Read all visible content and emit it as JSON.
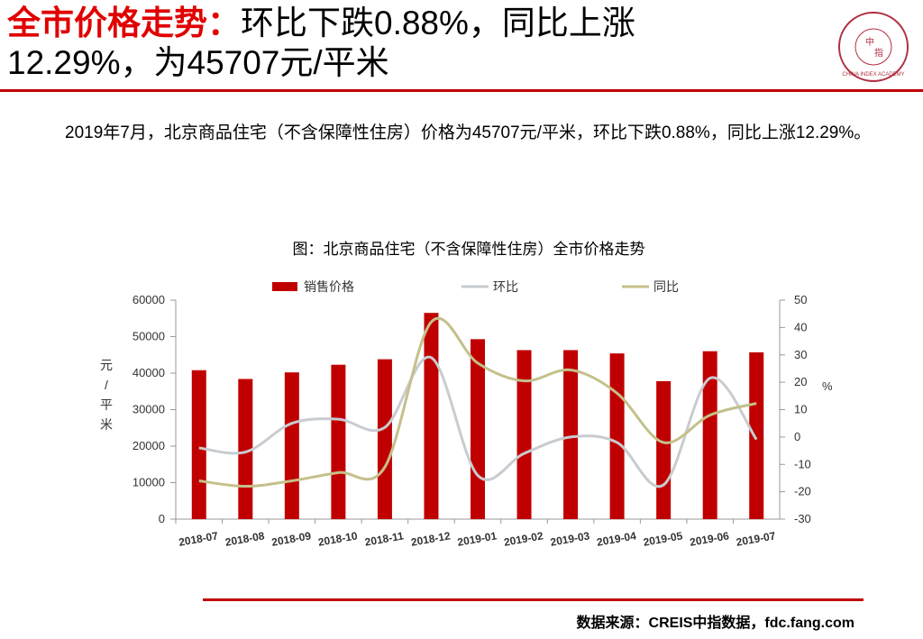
{
  "header": {
    "label": "全市价格走势：",
    "lines": [
      "环比下跌0.88%，同比上涨",
      "12.29%，为45707元/平米"
    ]
  },
  "logo": {
    "ring": "CHINA INDEX ACADEMY",
    "center": [
      "中",
      "指"
    ]
  },
  "paragraph": "2019年7月，北京商品住宅（不含保障性住房）价格为45707元/平米，环比下跌0.88%，同比上涨12.29%。",
  "chart_data": {
    "type": "bar",
    "title": "图：北京商品住宅（不含保障性住房）全市价格走势",
    "categories": [
      "2018-07",
      "2018-08",
      "2018-09",
      "2018-10",
      "2018-11",
      "2018-12",
      "2019-01",
      "2019-02",
      "2019-03",
      "2019-04",
      "2019-05",
      "2019-06",
      "2019-07"
    ],
    "series": [
      {
        "name": "销售价格",
        "type": "bar",
        "color": "#c00000",
        "values": [
          40800,
          38400,
          40200,
          42300,
          43800,
          56500,
          49300,
          46300,
          46300,
          45400,
          37800,
          46000,
          45707
        ]
      },
      {
        "name": "环比",
        "type": "line",
        "axis": "y2",
        "color": "#c8ccd0",
        "values": [
          -4,
          -5.5,
          5,
          6.5,
          3.5,
          29,
          -14,
          -6,
          0,
          -2,
          -17.5,
          21.5,
          -0.88
        ]
      },
      {
        "name": "同比",
        "type": "line",
        "axis": "y2",
        "color": "#c4c08a",
        "values": [
          -16,
          -18,
          -16,
          -13,
          -11,
          42,
          27,
          20.5,
          24.5,
          16,
          -2,
          8,
          12.29
        ]
      }
    ],
    "ylabel": "元/平米",
    "y2label": "%",
    "ylim": [
      0,
      60000
    ],
    "yticks": [
      0,
      10000,
      20000,
      30000,
      40000,
      50000,
      60000
    ],
    "y2lim": [
      -30,
      50
    ],
    "y2ticks": [
      -30,
      -20,
      -10,
      0,
      10,
      20,
      30,
      40,
      50
    ]
  },
  "source": "数据来源：CREIS中指数据，fdc.fang.com"
}
